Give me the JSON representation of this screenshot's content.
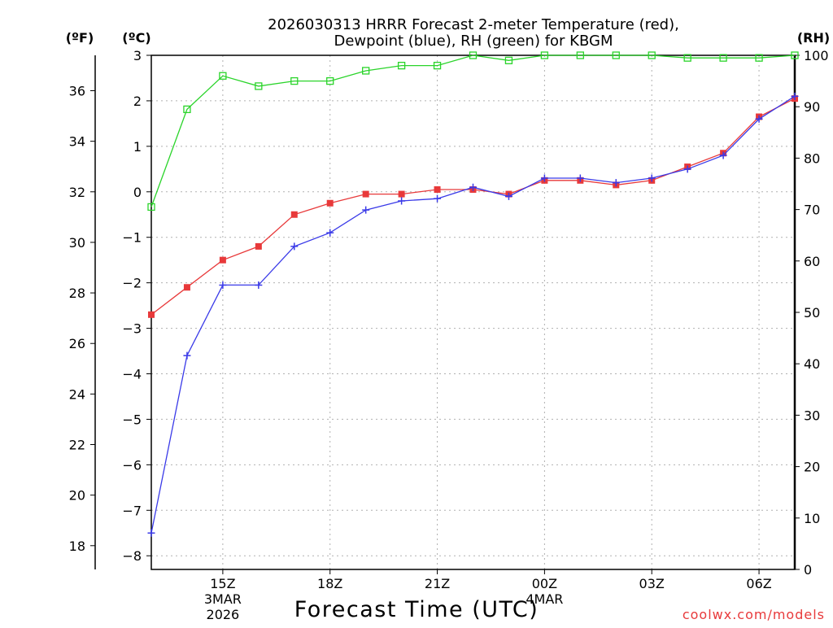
{
  "chart_data": {
    "type": "line",
    "title_line1": "2026030313 HRRR Forecast 2-meter Temperature (red),",
    "title_line2": "Dewpoint (blue), RH (green) for KBGM",
    "xlabel": "Forecast Time (UTC)",
    "unit_f": "(ºF)",
    "unit_c": "(ºC)",
    "unit_rh": "(RH)",
    "credit": "coolwx.com/models",
    "x_hours": [
      13,
      14,
      15,
      16,
      17,
      18,
      19,
      20,
      21,
      22,
      23,
      24,
      25,
      26,
      27,
      28,
      29,
      30,
      31
    ],
    "x_ticks": [
      {
        "hour": 15,
        "label": "15Z",
        "sub": [
          "3MAR",
          "2026"
        ]
      },
      {
        "hour": 18,
        "label": "18Z",
        "sub": []
      },
      {
        "hour": 21,
        "label": "21Z",
        "sub": []
      },
      {
        "hour": 24,
        "label": "00Z",
        "sub": [
          "4MAR"
        ]
      },
      {
        "hour": 27,
        "label": "03Z",
        "sub": []
      },
      {
        "hour": 30,
        "label": "06Z",
        "sub": []
      }
    ],
    "xlim": [
      13,
      31
    ],
    "ylim_c": [
      -8.3,
      3
    ],
    "ylim_rh": [
      0,
      100
    ],
    "c_ticks": [
      3,
      2,
      1,
      0,
      -1,
      -2,
      -3,
      -4,
      -5,
      -6,
      -7,
      -8
    ],
    "c_tick_labels": [
      "3",
      "2",
      "1",
      "0",
      "−1",
      "−2",
      "−3",
      "−4",
      "−5",
      "−6",
      "−7",
      "−8"
    ],
    "f_ticks": [
      36,
      34,
      32,
      30,
      28,
      26,
      24,
      22,
      20,
      18
    ],
    "f_tick_labels": [
      "36",
      "34",
      "32",
      "30",
      "28",
      "26",
      "24",
      "22",
      "20",
      "18"
    ],
    "rh_ticks": [
      100,
      90,
      80,
      70,
      60,
      50,
      40,
      30,
      20,
      10,
      0
    ],
    "rh_tick_labels": [
      "100",
      "90",
      "80",
      "70",
      "60",
      "50",
      "40",
      "30",
      "20",
      "10",
      "0"
    ],
    "series": [
      {
        "name": "Temperature",
        "unit": "C",
        "color": "#e8393a",
        "marker": "filled-square",
        "values": [
          -2.7,
          -2.1,
          -1.5,
          -1.2,
          -0.5,
          -0.25,
          -0.05,
          -0.05,
          0.05,
          0.05,
          -0.05,
          0.25,
          0.25,
          0.15,
          0.25,
          0.55,
          0.85,
          1.65,
          2.05
        ]
      },
      {
        "name": "Dewpoint",
        "unit": "C",
        "color": "#3a3ae8",
        "marker": "plus",
        "values": [
          -7.5,
          -3.6,
          -2.05,
          -2.05,
          -1.2,
          -0.9,
          -0.4,
          -0.2,
          -0.15,
          0.1,
          -0.1,
          0.3,
          0.3,
          0.2,
          0.3,
          0.5,
          0.8,
          1.6,
          2.1
        ]
      },
      {
        "name": "RH",
        "unit": "%",
        "color": "#2ad42a",
        "marker": "open-square",
        "values": [
          70.5,
          89.5,
          96,
          94,
          95,
          95,
          97,
          98,
          98,
          100,
          99,
          100,
          100,
          100,
          100,
          99.5,
          99.5,
          99.5,
          100
        ]
      }
    ]
  }
}
